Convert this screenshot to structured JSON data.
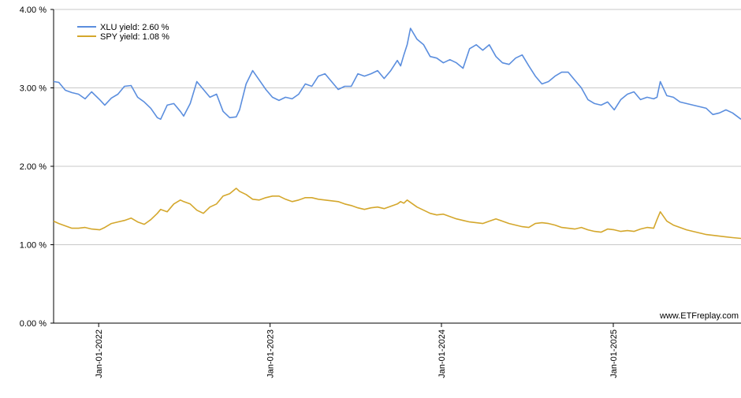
{
  "chart_data": {
    "type": "line",
    "title": "",
    "xlabel": "",
    "ylabel": "",
    "ylim": [
      0,
      4
    ],
    "y_ticks": [
      {
        "value": 0,
        "label": "0.00 %"
      },
      {
        "value": 1,
        "label": "1.00 %"
      },
      {
        "value": 2,
        "label": "2.00 %"
      },
      {
        "value": 3,
        "label": "3.00 %"
      },
      {
        "value": 4,
        "label": "4.00 %"
      }
    ],
    "x_range": [
      "2021-09-27",
      "2025-09-30"
    ],
    "x_ticks": [
      {
        "value": "2022-01-01",
        "label": "Jan-01-2022"
      },
      {
        "value": "2023-01-01",
        "label": "Jan-01-2023"
      },
      {
        "value": "2024-01-01",
        "label": "Jan-01-2024"
      },
      {
        "value": "2025-01-01",
        "label": "Jan-01-2025"
      }
    ],
    "grid": true,
    "legend_position": "top-left",
    "watermark": "www.ETFreplay.com",
    "series": [
      {
        "name": "XLU yield: 2.60 %",
        "color": "#5b8ede",
        "points": [
          [
            "2021-09-27",
            3.08
          ],
          [
            "2021-10-08",
            3.07
          ],
          [
            "2021-10-22",
            2.97
          ],
          [
            "2021-11-05",
            2.94
          ],
          [
            "2021-11-19",
            2.92
          ],
          [
            "2021-12-03",
            2.86
          ],
          [
            "2021-12-17",
            2.95
          ],
          [
            "2022-01-03",
            2.85
          ],
          [
            "2022-01-14",
            2.78
          ],
          [
            "2022-01-28",
            2.87
          ],
          [
            "2022-02-11",
            2.92
          ],
          [
            "2022-02-25",
            3.02
          ],
          [
            "2022-03-11",
            3.03
          ],
          [
            "2022-03-25",
            2.88
          ],
          [
            "2022-04-08",
            2.82
          ],
          [
            "2022-04-22",
            2.74
          ],
          [
            "2022-05-06",
            2.62
          ],
          [
            "2022-05-13",
            2.6
          ],
          [
            "2022-05-27",
            2.78
          ],
          [
            "2022-06-10",
            2.8
          ],
          [
            "2022-06-24",
            2.7
          ],
          [
            "2022-07-01",
            2.64
          ],
          [
            "2022-07-15",
            2.8
          ],
          [
            "2022-07-29",
            3.08
          ],
          [
            "2022-08-12",
            2.98
          ],
          [
            "2022-08-26",
            2.88
          ],
          [
            "2022-09-09",
            2.92
          ],
          [
            "2022-09-23",
            2.7
          ],
          [
            "2022-10-07",
            2.62
          ],
          [
            "2022-10-21",
            2.63
          ],
          [
            "2022-10-28",
            2.72
          ],
          [
            "2022-11-11",
            3.05
          ],
          [
            "2022-11-25",
            3.22
          ],
          [
            "2022-12-09",
            3.1
          ],
          [
            "2022-12-23",
            2.98
          ],
          [
            "2023-01-06",
            2.88
          ],
          [
            "2023-01-20",
            2.84
          ],
          [
            "2023-02-03",
            2.88
          ],
          [
            "2023-02-17",
            2.86
          ],
          [
            "2023-03-03",
            2.92
          ],
          [
            "2023-03-17",
            3.05
          ],
          [
            "2023-03-31",
            3.02
          ],
          [
            "2023-04-14",
            3.15
          ],
          [
            "2023-04-28",
            3.18
          ],
          [
            "2023-05-12",
            3.08
          ],
          [
            "2023-05-26",
            2.98
          ],
          [
            "2023-06-09",
            3.02
          ],
          [
            "2023-06-23",
            3.02
          ],
          [
            "2023-07-07",
            3.18
          ],
          [
            "2023-07-21",
            3.15
          ],
          [
            "2023-08-04",
            3.18
          ],
          [
            "2023-08-18",
            3.22
          ],
          [
            "2023-09-01",
            3.12
          ],
          [
            "2023-09-15",
            3.22
          ],
          [
            "2023-09-29",
            3.35
          ],
          [
            "2023-10-06",
            3.28
          ],
          [
            "2023-10-13",
            3.42
          ],
          [
            "2023-10-20",
            3.55
          ],
          [
            "2023-10-27",
            3.76
          ],
          [
            "2023-11-10",
            3.62
          ],
          [
            "2023-11-24",
            3.55
          ],
          [
            "2023-12-08",
            3.4
          ],
          [
            "2023-12-22",
            3.38
          ],
          [
            "2024-01-05",
            3.32
          ],
          [
            "2024-01-19",
            3.36
          ],
          [
            "2024-02-02",
            3.32
          ],
          [
            "2024-02-16",
            3.25
          ],
          [
            "2024-03-01",
            3.5
          ],
          [
            "2024-03-15",
            3.55
          ],
          [
            "2024-03-29",
            3.48
          ],
          [
            "2024-04-12",
            3.55
          ],
          [
            "2024-04-26",
            3.4
          ],
          [
            "2024-05-10",
            3.32
          ],
          [
            "2024-05-24",
            3.3
          ],
          [
            "2024-06-07",
            3.38
          ],
          [
            "2024-06-21",
            3.42
          ],
          [
            "2024-07-05",
            3.28
          ],
          [
            "2024-07-19",
            3.15
          ],
          [
            "2024-08-02",
            3.05
          ],
          [
            "2024-08-16",
            3.08
          ],
          [
            "2024-08-30",
            3.15
          ],
          [
            "2024-09-13",
            3.2
          ],
          [
            "2024-09-27",
            3.2
          ],
          [
            "2024-10-11",
            3.1
          ],
          [
            "2024-10-25",
            3.0
          ],
          [
            "2024-11-08",
            2.85
          ],
          [
            "2024-11-22",
            2.8
          ],
          [
            "2024-12-06",
            2.78
          ],
          [
            "2024-12-20",
            2.82
          ],
          [
            "2025-01-03",
            2.72
          ],
          [
            "2025-01-17",
            2.85
          ],
          [
            "2025-01-31",
            2.92
          ],
          [
            "2025-02-14",
            2.95
          ],
          [
            "2025-02-28",
            2.85
          ],
          [
            "2025-03-14",
            2.88
          ],
          [
            "2025-03-28",
            2.86
          ],
          [
            "2025-04-04",
            2.88
          ],
          [
            "2025-04-11",
            3.08
          ],
          [
            "2025-04-25",
            2.9
          ],
          [
            "2025-05-09",
            2.88
          ],
          [
            "2025-05-23",
            2.82
          ],
          [
            "2025-06-06",
            2.8
          ],
          [
            "2025-06-20",
            2.78
          ],
          [
            "2025-07-04",
            2.76
          ],
          [
            "2025-07-18",
            2.74
          ],
          [
            "2025-08-01",
            2.66
          ],
          [
            "2025-08-15",
            2.68
          ],
          [
            "2025-08-29",
            2.72
          ],
          [
            "2025-09-12",
            2.68
          ],
          [
            "2025-09-30",
            2.6
          ]
        ]
      },
      {
        "name": "SPY yield: 1.08 %",
        "color": "#d4a72c",
        "points": [
          [
            "2021-09-27",
            1.3
          ],
          [
            "2021-10-08",
            1.27
          ],
          [
            "2021-10-22",
            1.24
          ],
          [
            "2021-11-05",
            1.21
          ],
          [
            "2021-11-19",
            1.21
          ],
          [
            "2021-12-03",
            1.22
          ],
          [
            "2021-12-17",
            1.2
          ],
          [
            "2022-01-03",
            1.19
          ],
          [
            "2022-01-14",
            1.22
          ],
          [
            "2022-01-28",
            1.27
          ],
          [
            "2022-02-11",
            1.29
          ],
          [
            "2022-02-25",
            1.31
          ],
          [
            "2022-03-11",
            1.34
          ],
          [
            "2022-03-25",
            1.29
          ],
          [
            "2022-04-08",
            1.26
          ],
          [
            "2022-04-22",
            1.32
          ],
          [
            "2022-05-06",
            1.4
          ],
          [
            "2022-05-13",
            1.45
          ],
          [
            "2022-05-27",
            1.42
          ],
          [
            "2022-06-10",
            1.52
          ],
          [
            "2022-06-24",
            1.57
          ],
          [
            "2022-07-01",
            1.55
          ],
          [
            "2022-07-15",
            1.52
          ],
          [
            "2022-07-29",
            1.44
          ],
          [
            "2022-08-12",
            1.4
          ],
          [
            "2022-08-26",
            1.48
          ],
          [
            "2022-09-09",
            1.52
          ],
          [
            "2022-09-23",
            1.62
          ],
          [
            "2022-10-07",
            1.65
          ],
          [
            "2022-10-21",
            1.72
          ],
          [
            "2022-10-28",
            1.68
          ],
          [
            "2022-11-11",
            1.64
          ],
          [
            "2022-11-25",
            1.58
          ],
          [
            "2022-12-09",
            1.57
          ],
          [
            "2022-12-23",
            1.6
          ],
          [
            "2023-01-06",
            1.62
          ],
          [
            "2023-01-20",
            1.62
          ],
          [
            "2023-02-03",
            1.58
          ],
          [
            "2023-02-17",
            1.55
          ],
          [
            "2023-03-03",
            1.57
          ],
          [
            "2023-03-17",
            1.6
          ],
          [
            "2023-03-31",
            1.6
          ],
          [
            "2023-04-14",
            1.58
          ],
          [
            "2023-04-28",
            1.57
          ],
          [
            "2023-05-12",
            1.56
          ],
          [
            "2023-05-26",
            1.55
          ],
          [
            "2023-06-09",
            1.52
          ],
          [
            "2023-06-23",
            1.5
          ],
          [
            "2023-07-07",
            1.47
          ],
          [
            "2023-07-21",
            1.45
          ],
          [
            "2023-08-04",
            1.47
          ],
          [
            "2023-08-18",
            1.48
          ],
          [
            "2023-09-01",
            1.46
          ],
          [
            "2023-09-15",
            1.49
          ],
          [
            "2023-09-29",
            1.52
          ],
          [
            "2023-10-06",
            1.55
          ],
          [
            "2023-10-13",
            1.53
          ],
          [
            "2023-10-20",
            1.57
          ],
          [
            "2023-10-27",
            1.54
          ],
          [
            "2023-11-10",
            1.48
          ],
          [
            "2023-11-24",
            1.44
          ],
          [
            "2023-12-08",
            1.4
          ],
          [
            "2023-12-22",
            1.38
          ],
          [
            "2024-01-05",
            1.39
          ],
          [
            "2024-01-19",
            1.36
          ],
          [
            "2024-02-02",
            1.33
          ],
          [
            "2024-02-16",
            1.31
          ],
          [
            "2024-03-01",
            1.29
          ],
          [
            "2024-03-15",
            1.28
          ],
          [
            "2024-03-29",
            1.27
          ],
          [
            "2024-04-12",
            1.3
          ],
          [
            "2024-04-26",
            1.33
          ],
          [
            "2024-05-10",
            1.3
          ],
          [
            "2024-05-24",
            1.27
          ],
          [
            "2024-06-07",
            1.25
          ],
          [
            "2024-06-21",
            1.23
          ],
          [
            "2024-07-05",
            1.22
          ],
          [
            "2024-07-19",
            1.27
          ],
          [
            "2024-08-02",
            1.28
          ],
          [
            "2024-08-16",
            1.27
          ],
          [
            "2024-08-30",
            1.25
          ],
          [
            "2024-09-13",
            1.22
          ],
          [
            "2024-09-27",
            1.21
          ],
          [
            "2024-10-11",
            1.2
          ],
          [
            "2024-10-25",
            1.22
          ],
          [
            "2024-11-08",
            1.19
          ],
          [
            "2024-11-22",
            1.17
          ],
          [
            "2024-12-06",
            1.16
          ],
          [
            "2024-12-20",
            1.2
          ],
          [
            "2025-01-03",
            1.19
          ],
          [
            "2025-01-17",
            1.17
          ],
          [
            "2025-01-31",
            1.18
          ],
          [
            "2025-02-14",
            1.17
          ],
          [
            "2025-02-28",
            1.2
          ],
          [
            "2025-03-14",
            1.22
          ],
          [
            "2025-03-28",
            1.21
          ],
          [
            "2025-04-04",
            1.32
          ],
          [
            "2025-04-11",
            1.42
          ],
          [
            "2025-04-25",
            1.3
          ],
          [
            "2025-05-09",
            1.25
          ],
          [
            "2025-05-23",
            1.22
          ],
          [
            "2025-06-06",
            1.19
          ],
          [
            "2025-06-20",
            1.17
          ],
          [
            "2025-07-04",
            1.15
          ],
          [
            "2025-07-18",
            1.13
          ],
          [
            "2025-08-01",
            1.12
          ],
          [
            "2025-08-15",
            1.11
          ],
          [
            "2025-08-29",
            1.1
          ],
          [
            "2025-09-12",
            1.09
          ],
          [
            "2025-09-30",
            1.08
          ]
        ]
      }
    ]
  }
}
